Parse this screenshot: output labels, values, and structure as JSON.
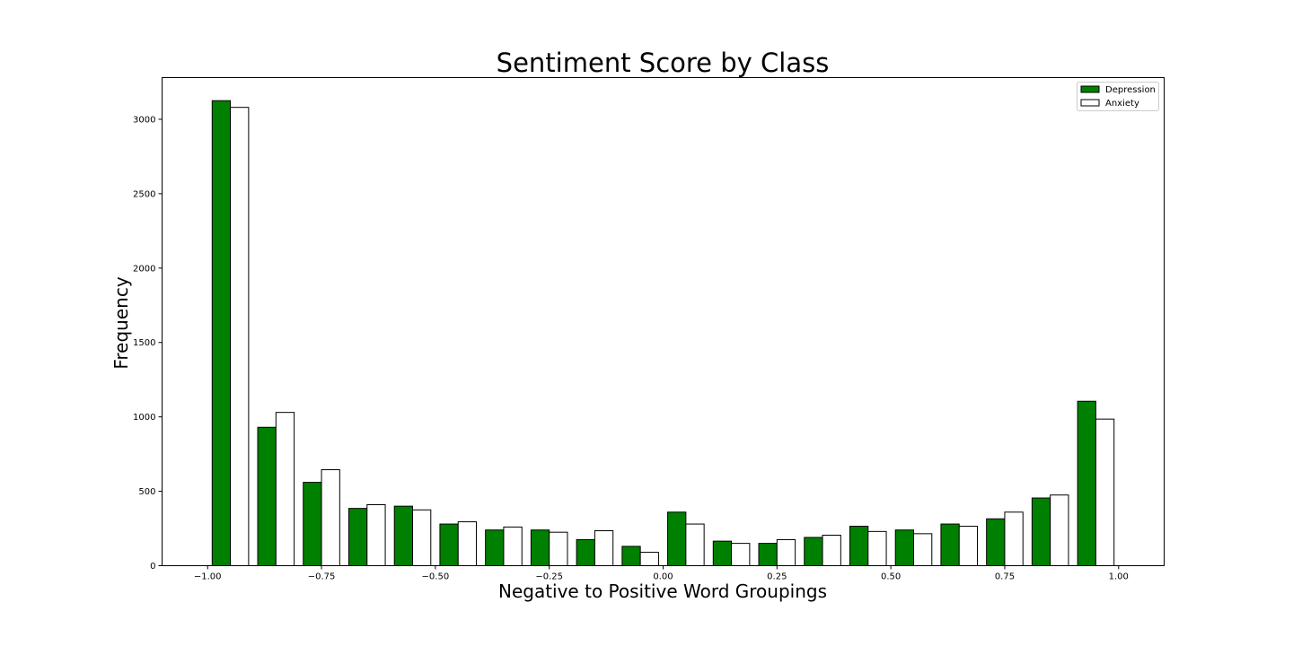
{
  "chart_data": {
    "type": "bar",
    "title": "Sentiment Score by Class",
    "xlabel": "Negative to Positive Word Groupings",
    "ylabel": "Frequency",
    "xlim": [
      -1.1,
      1.1
    ],
    "ylim": [
      0,
      3280
    ],
    "bin_edges": [
      -1.0,
      -0.9,
      -0.8,
      -0.7,
      -0.6,
      -0.5,
      -0.4,
      -0.3,
      -0.2,
      -0.1,
      0.0,
      0.1,
      0.2,
      0.3,
      0.4,
      0.5,
      0.6,
      0.7,
      0.8,
      0.9,
      1.0
    ],
    "xticks": [
      -1.0,
      -0.75,
      -0.5,
      -0.25,
      0.0,
      0.25,
      0.5,
      0.75,
      1.0
    ],
    "xtick_labels": [
      "−1.00",
      "−0.75",
      "−0.50",
      "−0.25",
      "0.00",
      "0.25",
      "0.50",
      "0.75",
      "1.00"
    ],
    "yticks": [
      0,
      500,
      1000,
      1500,
      2000,
      2500,
      3000
    ],
    "ytick_labels": [
      "0",
      "500",
      "1000",
      "1500",
      "2000",
      "2500",
      "3000"
    ],
    "grid": false,
    "legend_position": "top-right",
    "series": [
      {
        "name": "Depression",
        "color": "#008000",
        "values": [
          3125,
          930,
          560,
          385,
          400,
          280,
          240,
          240,
          175,
          130,
          360,
          165,
          150,
          190,
          265,
          240,
          280,
          315,
          455,
          1105
        ]
      },
      {
        "name": "Anxiety",
        "color": "#ffffff",
        "values": [
          3080,
          1030,
          645,
          410,
          375,
          295,
          260,
          225,
          235,
          90,
          280,
          150,
          175,
          205,
          230,
          215,
          265,
          360,
          475,
          985
        ]
      }
    ]
  }
}
